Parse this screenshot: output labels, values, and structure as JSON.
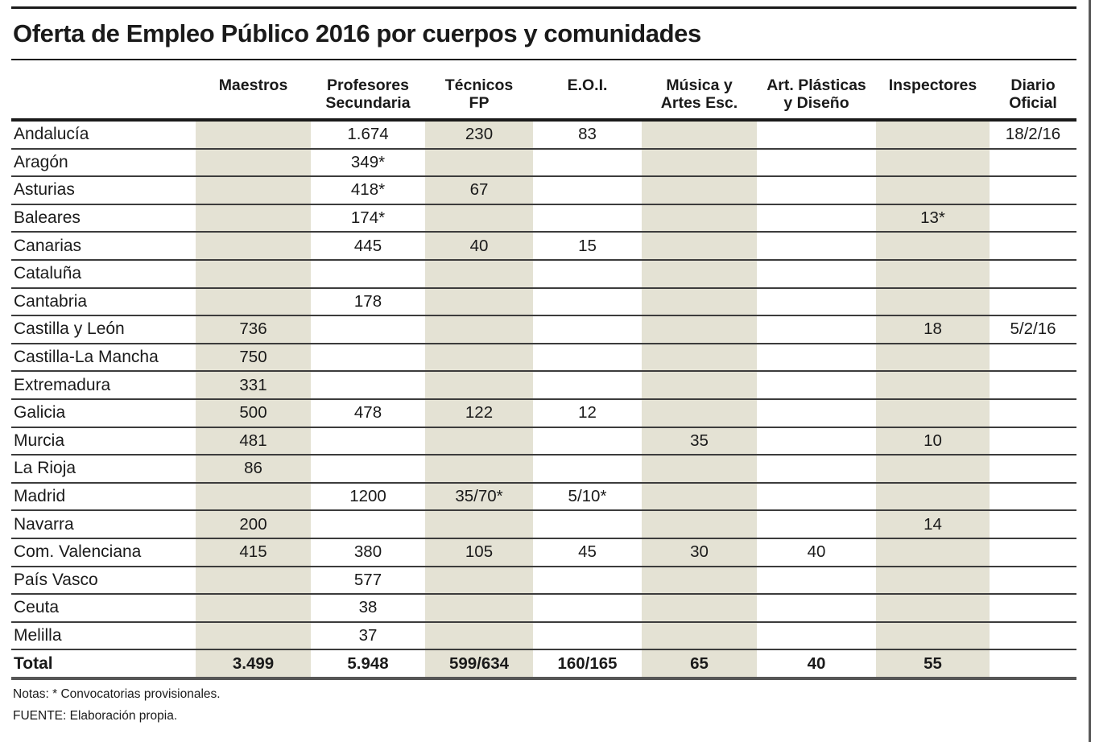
{
  "page": {
    "title": "Oferta de Empleo Público 2016 por cuerpos y comunidades",
    "notes": {
      "footnote": "Notas: * Convocatorias provisionales.",
      "source": "FUENTE: Elaboración propia."
    }
  },
  "colors": {
    "text": "#1a1a1a",
    "rule_dark": "#1a1a1a",
    "rule_row": "#3c3c3c",
    "rule_bottom": "#565656",
    "rule_edge": "#5a5a5a",
    "shaded_cell": "#e4e2d4"
  },
  "chart_data": {
    "type": "table",
    "title": "Oferta de Empleo Público 2016 por cuerpos y comunidades",
    "columns": [
      "Maestros",
      "Profesores\nSecundaria",
      "Técnicos\nFP",
      "E.O.I.",
      "Música y\nArtes Esc.",
      "Art. Plásticas\ny Diseño",
      "Inspectores",
      "Diario\nOficial"
    ],
    "shaded_column_indices": [
      0,
      2,
      4,
      6
    ],
    "rows": [
      {
        "region": "Andalucía",
        "values": [
          "",
          "1.674",
          "230",
          "83",
          "",
          "",
          "",
          "18/2/16"
        ]
      },
      {
        "region": "Aragón",
        "values": [
          "",
          "349*",
          "",
          "",
          "",
          "",
          "",
          ""
        ]
      },
      {
        "region": "Asturias",
        "values": [
          "",
          "418*",
          "67",
          "",
          "",
          "",
          "",
          ""
        ]
      },
      {
        "region": "Baleares",
        "values": [
          "",
          "174*",
          "",
          "",
          "",
          "",
          "13*",
          ""
        ]
      },
      {
        "region": "Canarias",
        "values": [
          "",
          "445",
          "40",
          "15",
          "",
          "",
          "",
          ""
        ]
      },
      {
        "region": "Cataluña",
        "values": [
          "",
          "",
          "",
          "",
          "",
          "",
          "",
          ""
        ]
      },
      {
        "region": "Cantabria",
        "values": [
          "",
          "178",
          "",
          "",
          "",
          "",
          "",
          ""
        ]
      },
      {
        "region": "Castilla y León",
        "values": [
          "736",
          "",
          "",
          "",
          "",
          "",
          "18",
          "5/2/16"
        ]
      },
      {
        "region": "Castilla-La Mancha",
        "values": [
          "750",
          "",
          "",
          "",
          "",
          "",
          "",
          ""
        ]
      },
      {
        "region": "Extremadura",
        "values": [
          "331",
          "",
          "",
          "",
          "",
          "",
          "",
          ""
        ]
      },
      {
        "region": "Galicia",
        "values": [
          "500",
          "478",
          "122",
          "12",
          "",
          "",
          "",
          ""
        ]
      },
      {
        "region": "Murcia",
        "values": [
          "481",
          "",
          "",
          "",
          "35",
          "",
          "10",
          ""
        ]
      },
      {
        "region": "La Rioja",
        "values": [
          "86",
          "",
          "",
          "",
          "",
          "",
          "",
          ""
        ]
      },
      {
        "region": "Madrid",
        "values": [
          "",
          "1200",
          "35/70*",
          "5/10*",
          "",
          "",
          "",
          ""
        ]
      },
      {
        "region": "Navarra",
        "values": [
          "200",
          "",
          "",
          "",
          "",
          "",
          "14",
          ""
        ]
      },
      {
        "region": "Com. Valenciana",
        "values": [
          "415",
          "380",
          "105",
          "45",
          "30",
          "40",
          "",
          ""
        ]
      },
      {
        "region": "País Vasco",
        "values": [
          "",
          "577",
          "",
          "",
          "",
          "",
          "",
          ""
        ]
      },
      {
        "region": "Ceuta",
        "values": [
          "",
          "38",
          "",
          "",
          "",
          "",
          "",
          ""
        ]
      },
      {
        "region": "Melilla",
        "values": [
          "",
          "37",
          "",
          "",
          "",
          "",
          "",
          ""
        ]
      },
      {
        "region": "Total",
        "is_total": true,
        "values": [
          "3.499",
          "5.948",
          "599/634",
          "160/165",
          "65",
          "40",
          "55",
          ""
        ]
      }
    ]
  }
}
